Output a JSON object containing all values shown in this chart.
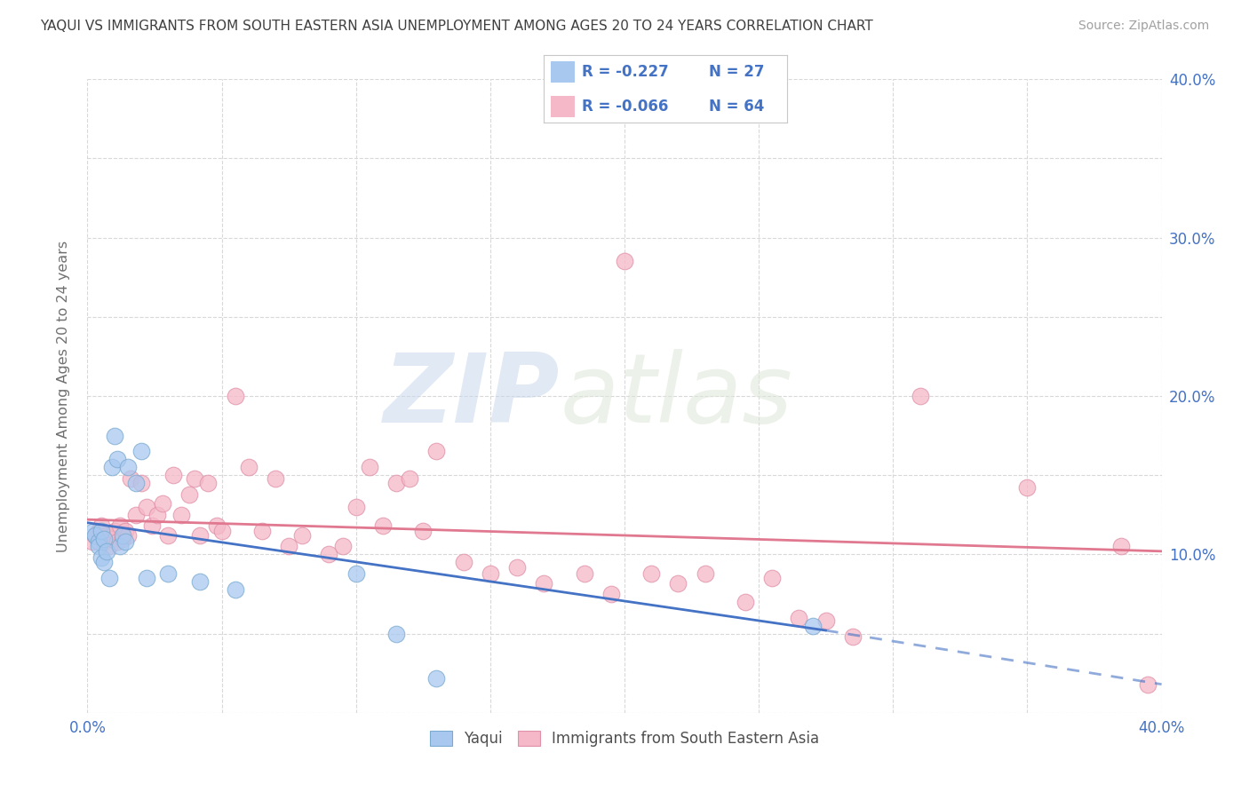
{
  "title": "YAQUI VS IMMIGRANTS FROM SOUTH EASTERN ASIA UNEMPLOYMENT AMONG AGES 20 TO 24 YEARS CORRELATION CHART",
  "source": "Source: ZipAtlas.com",
  "ylabel": "Unemployment Among Ages 20 to 24 years",
  "xlim": [
    0,
    0.4
  ],
  "ylim": [
    0,
    0.4
  ],
  "legend_R1": "-0.227",
  "legend_N1": "27",
  "legend_R2": "-0.066",
  "legend_N2": "64",
  "watermark_zip": "ZIP",
  "watermark_atlas": "atlas",
  "series1_color": "#a8c8f0",
  "series1_edge": "#7aaad0",
  "series2_color": "#f5b8c8",
  "series2_edge": "#e090a8",
  "line1_color": "#4472c4",
  "line2_color": "#e07890",
  "legend_text_color": "#4472c4",
  "title_color": "#404040",
  "source_color": "#a0a0a0",
  "grid_color": "#d8d8d8",
  "background_color": "#ffffff",
  "axis_label_color": "#4472c4",
  "ylabel_color": "#707070",
  "yaqui_x": [
    0.002,
    0.003,
    0.004,
    0.004,
    0.005,
    0.005,
    0.006,
    0.006,
    0.007,
    0.008,
    0.009,
    0.01,
    0.011,
    0.012,
    0.013,
    0.014,
    0.015,
    0.018,
    0.02,
    0.022,
    0.03,
    0.042,
    0.055,
    0.1,
    0.115,
    0.13,
    0.27
  ],
  "yaqui_y": [
    0.114,
    0.112,
    0.108,
    0.105,
    0.115,
    0.098,
    0.11,
    0.095,
    0.102,
    0.085,
    0.155,
    0.175,
    0.16,
    0.105,
    0.112,
    0.108,
    0.155,
    0.145,
    0.165,
    0.085,
    0.088,
    0.083,
    0.078,
    0.088,
    0.05,
    0.022,
    0.055
  ],
  "asia_x": [
    0.002,
    0.003,
    0.004,
    0.005,
    0.006,
    0.007,
    0.008,
    0.009,
    0.01,
    0.011,
    0.012,
    0.013,
    0.014,
    0.015,
    0.016,
    0.018,
    0.02,
    0.022,
    0.024,
    0.026,
    0.028,
    0.03,
    0.032,
    0.035,
    0.038,
    0.04,
    0.042,
    0.045,
    0.048,
    0.05,
    0.055,
    0.06,
    0.065,
    0.07,
    0.075,
    0.08,
    0.09,
    0.095,
    0.1,
    0.105,
    0.11,
    0.115,
    0.12,
    0.125,
    0.13,
    0.14,
    0.15,
    0.16,
    0.17,
    0.185,
    0.195,
    0.2,
    0.21,
    0.22,
    0.23,
    0.245,
    0.255,
    0.265,
    0.275,
    0.285,
    0.31,
    0.35,
    0.385,
    0.395
  ],
  "asia_y": [
    0.108,
    0.112,
    0.115,
    0.118,
    0.108,
    0.112,
    0.105,
    0.11,
    0.115,
    0.108,
    0.118,
    0.11,
    0.115,
    0.112,
    0.148,
    0.125,
    0.145,
    0.13,
    0.118,
    0.125,
    0.132,
    0.112,
    0.15,
    0.125,
    0.138,
    0.148,
    0.112,
    0.145,
    0.118,
    0.115,
    0.2,
    0.155,
    0.115,
    0.148,
    0.105,
    0.112,
    0.1,
    0.105,
    0.13,
    0.155,
    0.118,
    0.145,
    0.148,
    0.115,
    0.165,
    0.095,
    0.088,
    0.092,
    0.082,
    0.088,
    0.075,
    0.285,
    0.088,
    0.082,
    0.088,
    0.07,
    0.085,
    0.06,
    0.058,
    0.048,
    0.2,
    0.142,
    0.105,
    0.018
  ],
  "line1_x0": 0.0,
  "line1_x1": 0.275,
  "line1_y0": 0.12,
  "line1_y1": 0.052,
  "line1_dash_x0": 0.275,
  "line1_dash_x1": 0.4,
  "line1_dash_y0": 0.052,
  "line1_dash_y1": 0.018,
  "line2_x0": 0.0,
  "line2_x1": 0.4,
  "line2_y0": 0.122,
  "line2_y1": 0.102
}
